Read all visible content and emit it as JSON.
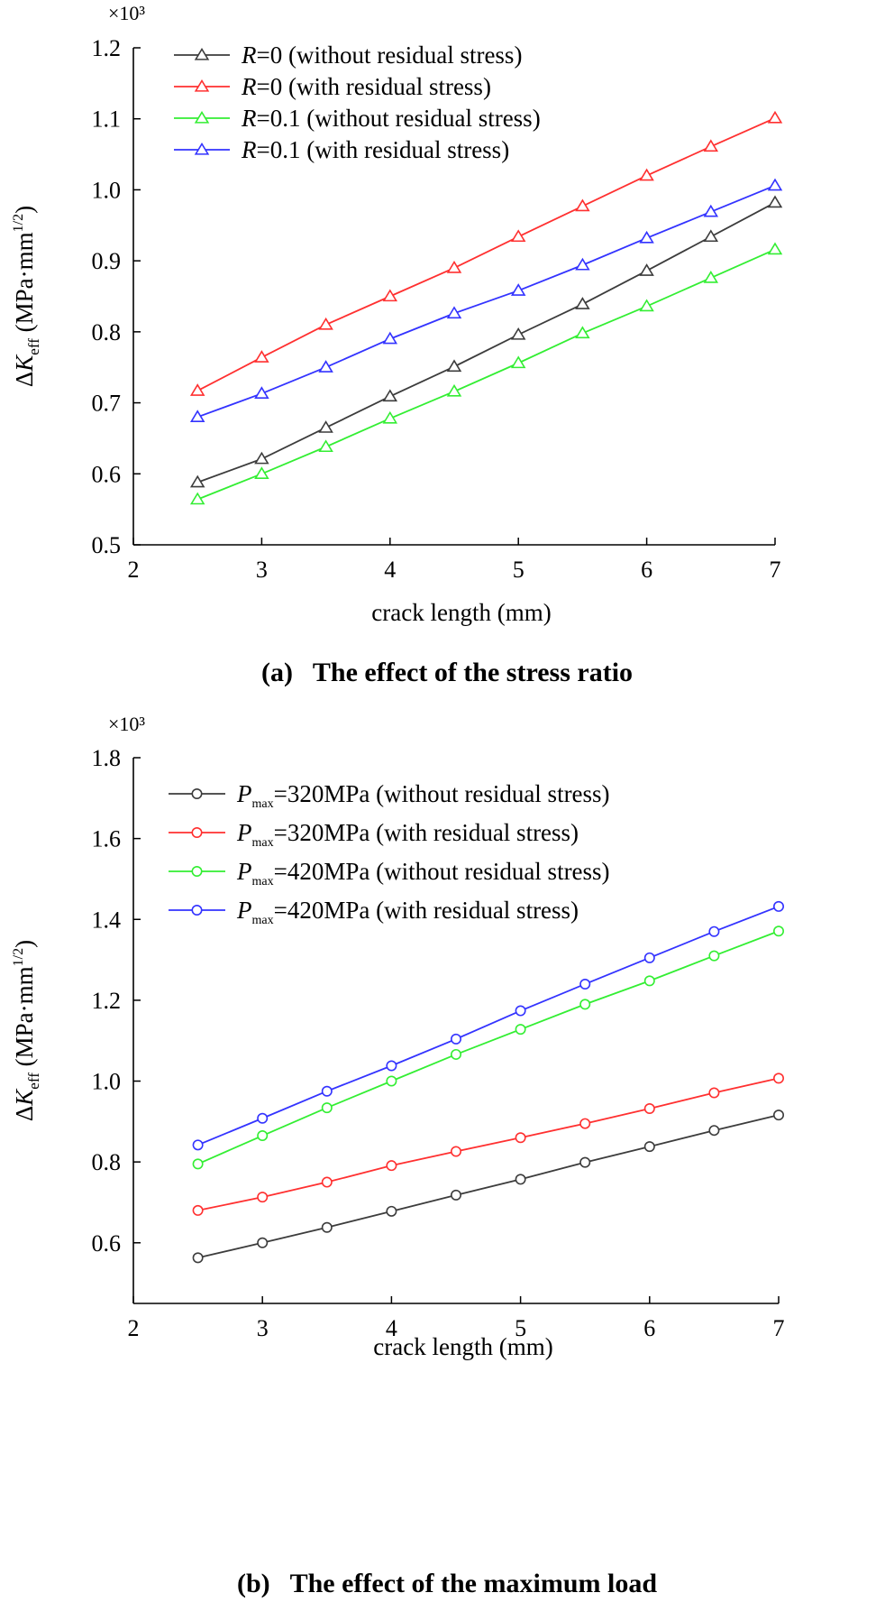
{
  "chart_data": [
    {
      "id": "a",
      "type": "line",
      "caption": "(a)   The effect of the stress ratio",
      "multiplier": "×10³",
      "xlabel": "crack length (mm)",
      "ylabel": "ΔK_eff (MPa·mm^1/2)",
      "ylabel_parts": {
        "delta": "Δ",
        "k": "K",
        "sub": "eff",
        "unit_pre": " (MPa·mm",
        "sup": "1/2",
        "unit_post": ")"
      },
      "xlim": [
        2,
        7
      ],
      "ylim": [
        0.5,
        1.2
      ],
      "xticks": [
        2,
        3,
        4,
        5,
        6,
        7
      ],
      "yticks": [
        0.5,
        0.6,
        0.7,
        0.8,
        0.9,
        1.0,
        1.1,
        1.2
      ],
      "ytick_labels": [
        "0.5",
        "0.6",
        "0.7",
        "0.8",
        "0.9",
        "1.0",
        "1.1",
        "1.2"
      ],
      "marker": "triangle",
      "x": [
        2.5,
        3.0,
        3.5,
        4.0,
        4.5,
        5.0,
        5.5,
        6.0,
        6.5,
        7.0
      ],
      "legend_position": "top-left",
      "series": [
        {
          "name": "R=0 (without residual stress)",
          "legend_var": "R",
          "legend_rest": "=0 (without residual stress)",
          "color": "#3c3c3c",
          "values": [
            0.588,
            0.621,
            0.665,
            0.709,
            0.751,
            0.796,
            0.839,
            0.886,
            0.934,
            0.982
          ]
        },
        {
          "name": "R=0 (with residual stress)",
          "legend_var": "R",
          "legend_rest": "=0 (with residual stress)",
          "color": "#ff3030",
          "values": [
            0.717,
            0.764,
            0.81,
            0.85,
            0.89,
            0.934,
            0.977,
            1.02,
            1.061,
            1.101
          ]
        },
        {
          "name": "R=0.1 (without residual stress)",
          "legend_var": "R",
          "legend_rest": "=0.1 (without residual stress)",
          "color": "#33ee33",
          "values": [
            0.564,
            0.6,
            0.638,
            0.678,
            0.716,
            0.756,
            0.798,
            0.836,
            0.876,
            0.916
          ]
        },
        {
          "name": "R=0.1 (with residual stress)",
          "legend_var": "R",
          "legend_rest": "=0.1 (with residual stress)",
          "color": "#3333ff",
          "values": [
            0.68,
            0.713,
            0.75,
            0.79,
            0.826,
            0.858,
            0.894,
            0.932,
            0.969,
            1.006
          ]
        }
      ]
    },
    {
      "id": "b",
      "type": "line",
      "caption": "(b)   The effect of the maximum load",
      "multiplier": "×10³",
      "xlabel": "crack length (mm)",
      "ylabel": "ΔK_eff (MPa·mm^1/2)",
      "ylabel_parts": {
        "delta": "Δ",
        "k": "K",
        "sub": "eff",
        "unit_pre": " (MPa·mm",
        "sup": "1/2",
        "unit_post": ")"
      },
      "xlim": [
        2,
        7
      ],
      "ylim": [
        0.45,
        1.8
      ],
      "xticks": [
        2,
        3,
        4,
        5,
        6,
        7
      ],
      "yticks": [
        0.6,
        0.8,
        1.0,
        1.2,
        1.4,
        1.6,
        1.8
      ],
      "ytick_labels": [
        "0.6",
        "0.8",
        "1.0",
        "1.2",
        "1.4",
        "1.6",
        "1.8"
      ],
      "marker": "circle",
      "x": [
        2.5,
        3.0,
        3.5,
        4.0,
        4.5,
        5.0,
        5.5,
        6.0,
        6.5,
        7.0
      ],
      "legend_position": "top-left",
      "series": [
        {
          "name": "Pmax=320MPa (without residual stress)",
          "legend_var": "P",
          "legend_sub": "max",
          "legend_rest": "=320MPa (without residual stress)",
          "color": "#3c3c3c",
          "values": [
            0.563,
            0.6,
            0.638,
            0.678,
            0.718,
            0.757,
            0.799,
            0.838,
            0.878,
            0.916
          ]
        },
        {
          "name": "Pmax=320MPa (with residual stress)",
          "legend_var": "P",
          "legend_sub": "max",
          "legend_rest": "=320MPa (with residual stress)",
          "color": "#ff3030",
          "values": [
            0.68,
            0.713,
            0.75,
            0.791,
            0.826,
            0.86,
            0.895,
            0.932,
            0.971,
            1.007
          ]
        },
        {
          "name": "Pmax=420MPa (without residual stress)",
          "legend_var": "P",
          "legend_sub": "max",
          "legend_rest": "=420MPa (without residual stress)",
          "color": "#33ee33",
          "values": [
            0.795,
            0.865,
            0.934,
            1.0,
            1.066,
            1.128,
            1.19,
            1.248,
            1.31,
            1.371
          ]
        },
        {
          "name": "Pmax=420MPa (with residual stress)",
          "legend_var": "P",
          "legend_sub": "max",
          "legend_rest": "=420MPa (with residual stress)",
          "color": "#3333ff",
          "values": [
            0.842,
            0.908,
            0.975,
            1.038,
            1.104,
            1.174,
            1.24,
            1.305,
            1.37,
            1.432
          ]
        }
      ]
    }
  ]
}
